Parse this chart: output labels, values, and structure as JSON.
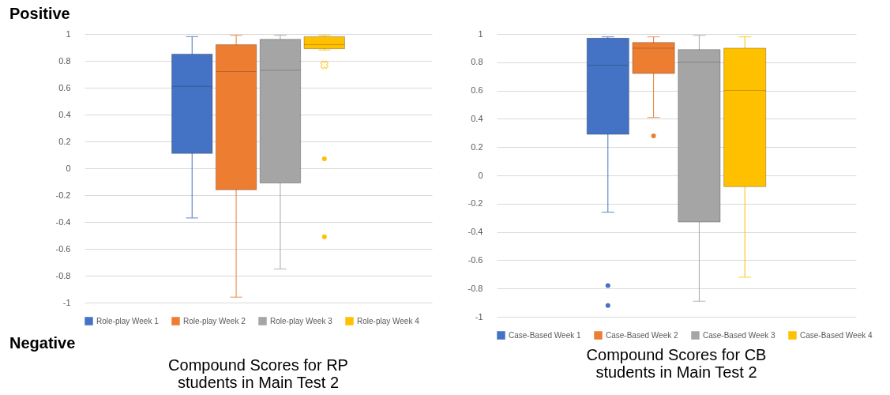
{
  "chart_data": [
    {
      "type": "box",
      "title": "Compound Scores for RP students in Main Test 2",
      "annotations": [
        "Positive",
        "Negative"
      ],
      "categories": [
        null
      ],
      "ylim": [
        -1,
        1
      ],
      "yticks": [
        -1,
        -0.8,
        -0.6,
        -0.4,
        -0.2,
        0,
        0.2,
        0.4,
        0.6,
        0.8,
        1
      ],
      "grid": "y",
      "legend": "bottom",
      "series": [
        {
          "name": "Role-play Week 1",
          "color": "#4472c4",
          "boxes": [
            {
              "low": -0.37,
              "q1": 0.11,
              "median": 0.61,
              "q3": 0.85,
              "high": 0.98,
              "mean": 0.51
            }
          ]
        },
        {
          "name": "Role-play Week 2",
          "color": "#ed7d31",
          "boxes": [
            {
              "low": -0.96,
              "q1": -0.16,
              "median": 0.72,
              "q3": 0.92,
              "high": 0.99,
              "mean": 0.41
            }
          ]
        },
        {
          "name": "Role-play Week 3",
          "color": "#a5a5a5",
          "boxes": [
            {
              "low": -0.75,
              "q1": -0.11,
              "median": 0.73,
              "q3": 0.96,
              "high": 0.99,
              "mean": 0.43
            }
          ]
        },
        {
          "name": "Role-play Week 4",
          "color": "#ffc000",
          "boxes": [
            {
              "low": 0.88,
              "q1": 0.89,
              "median": 0.92,
              "q3": 0.98,
              "high": 0.99,
              "mean": 0.77,
              "outliers": [
                0.07,
                -0.51
              ]
            }
          ]
        }
      ]
    },
    {
      "type": "box",
      "title": "Compound Scores for CB students in Main Test 2",
      "categories": [
        null
      ],
      "ylim": [
        -1,
        1
      ],
      "yticks": [
        -1,
        -0.8,
        -0.6,
        -0.4,
        -0.2,
        0,
        0.2,
        0.4,
        0.6,
        0.8,
        1
      ],
      "grid": "y",
      "legend": "bottom",
      "series": [
        {
          "name": "Case-Based Week 1",
          "color": "#4472c4",
          "boxes": [
            {
              "low": -0.26,
              "q1": 0.29,
              "median": 0.78,
              "q3": 0.97,
              "high": 0.98,
              "mean": 0.52,
              "outliers": [
                -0.78,
                -0.92
              ]
            }
          ]
        },
        {
          "name": "Case-Based Week 2",
          "color": "#ed7d31",
          "boxes": [
            {
              "low": 0.41,
              "q1": 0.72,
              "median": 0.9,
              "q3": 0.94,
              "high": 0.98,
              "mean": 0.79,
              "outliers": [
                0.28
              ]
            }
          ]
        },
        {
          "name": "Case-Based Week 3",
          "color": "#a5a5a5",
          "boxes": [
            {
              "low": -0.89,
              "q1": -0.33,
              "median": 0.8,
              "q3": 0.89,
              "high": 0.99,
              "mean": 0.41
            }
          ]
        },
        {
          "name": "Case-Based Week 4",
          "color": "#ffc000",
          "boxes": [
            {
              "low": -0.72,
              "q1": -0.08,
              "median": 0.6,
              "q3": 0.9,
              "high": 0.98,
              "mean": 0.4
            }
          ]
        }
      ]
    }
  ]
}
